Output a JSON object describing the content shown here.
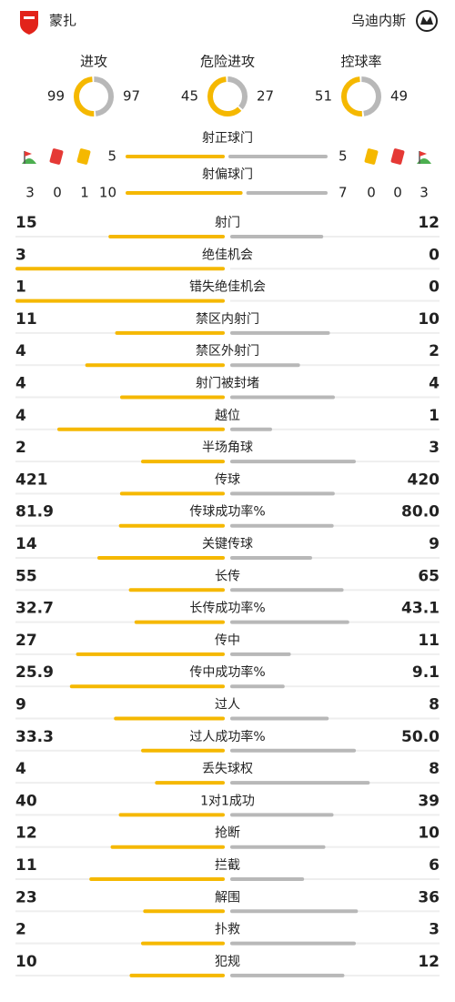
{
  "header": {
    "home": "蒙扎",
    "away": "乌迪内斯"
  },
  "rings": [
    {
      "label": "进攻",
      "home": 99,
      "away": 97
    },
    {
      "label": "危险进攻",
      "home": 45,
      "away": 27
    },
    {
      "label": "控球率",
      "home": 51,
      "away": 49
    }
  ],
  "cards": {
    "home": {
      "corners": 3,
      "red": 0,
      "yellow": 1
    },
    "away": {
      "yellow": 0,
      "red": 0,
      "corners": 3
    }
  },
  "top_bars": [
    {
      "label": "射正球门",
      "home": 5,
      "away": 5
    },
    {
      "label": "射偏球门",
      "home": 10,
      "away": 7
    }
  ],
  "stats": [
    {
      "label": "射门",
      "home": 15,
      "away": 12
    },
    {
      "label": "绝佳机会",
      "home": 3,
      "away": 0
    },
    {
      "label": "错失绝佳机会",
      "home": 1,
      "away": 0
    },
    {
      "label": "禁区内射门",
      "home": 11,
      "away": 10
    },
    {
      "label": "禁区外射门",
      "home": 4,
      "away": 2
    },
    {
      "label": "射门被封堵",
      "home": 4,
      "away": 4
    },
    {
      "label": "越位",
      "home": 4,
      "away": 1
    },
    {
      "label": "半场角球",
      "home": 2,
      "away": 3
    },
    {
      "label": "传球",
      "home": 421,
      "away": 420
    },
    {
      "label": "传球成功率%",
      "home": 81.9,
      "away": 80,
      "away_label": "80.0"
    },
    {
      "label": "关键传球",
      "home": 14,
      "away": 9
    },
    {
      "label": "长传",
      "home": 55,
      "away": 65
    },
    {
      "label": "长传成功率%",
      "home": 32.7,
      "away": 43.1
    },
    {
      "label": "传中",
      "home": 27,
      "away": 11
    },
    {
      "label": "传中成功率%",
      "home": 25.9,
      "away": 9.1
    },
    {
      "label": "过人",
      "home": 9,
      "away": 8
    },
    {
      "label": "过人成功率%",
      "home": 33.3,
      "away": 50,
      "away_label": "50.0"
    },
    {
      "label": "丢失球权",
      "home": 4,
      "away": 8
    },
    {
      "label": "1对1成功",
      "home": 40,
      "away": 39
    },
    {
      "label": "抢断",
      "home": 12,
      "away": 10
    },
    {
      "label": "拦截",
      "home": 11,
      "away": 6
    },
    {
      "label": "解围",
      "home": 23,
      "away": 36
    },
    {
      "label": "扑救",
      "home": 2,
      "away": 3
    },
    {
      "label": "犯规",
      "home": 10,
      "away": 12
    }
  ]
}
